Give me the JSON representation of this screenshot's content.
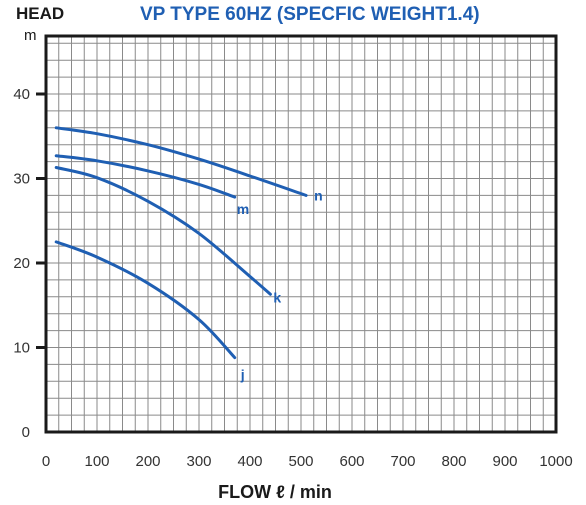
{
  "chart_data": {
    "type": "line",
    "title": "VP TYPE 60HZ (SPECFIC WEIGHT1.4)",
    "ylabel_title": "HEAD",
    "ylabel_unit": "m",
    "xlabel": "FLOW ℓ / min",
    "xlim": [
      0,
      1000
    ],
    "ylim": [
      0,
      47
    ],
    "x_ticks": [
      0,
      100,
      200,
      300,
      400,
      500,
      600,
      700,
      800,
      900,
      1000
    ],
    "y_ticks": [
      0,
      10,
      20,
      30,
      40
    ],
    "grid": true,
    "series": [
      {
        "name": "n",
        "x": [
          20,
          100,
          200,
          300,
          400,
          510
        ],
        "y": [
          36,
          35.3,
          34,
          32.3,
          30.3,
          28
        ]
      },
      {
        "name": "m",
        "x": [
          20,
          100,
          200,
          300,
          370
        ],
        "y": [
          32.7,
          32.1,
          30.9,
          29.3,
          27.8
        ]
      },
      {
        "name": "k",
        "x": [
          20,
          100,
          200,
          300,
          400,
          440
        ],
        "y": [
          31.3,
          30.1,
          27.3,
          23.5,
          18.4,
          16.3
        ]
      },
      {
        "name": "j",
        "x": [
          20,
          100,
          200,
          300,
          370
        ],
        "y": [
          22.5,
          20.7,
          17.6,
          13.3,
          8.8
        ]
      }
    ]
  }
}
